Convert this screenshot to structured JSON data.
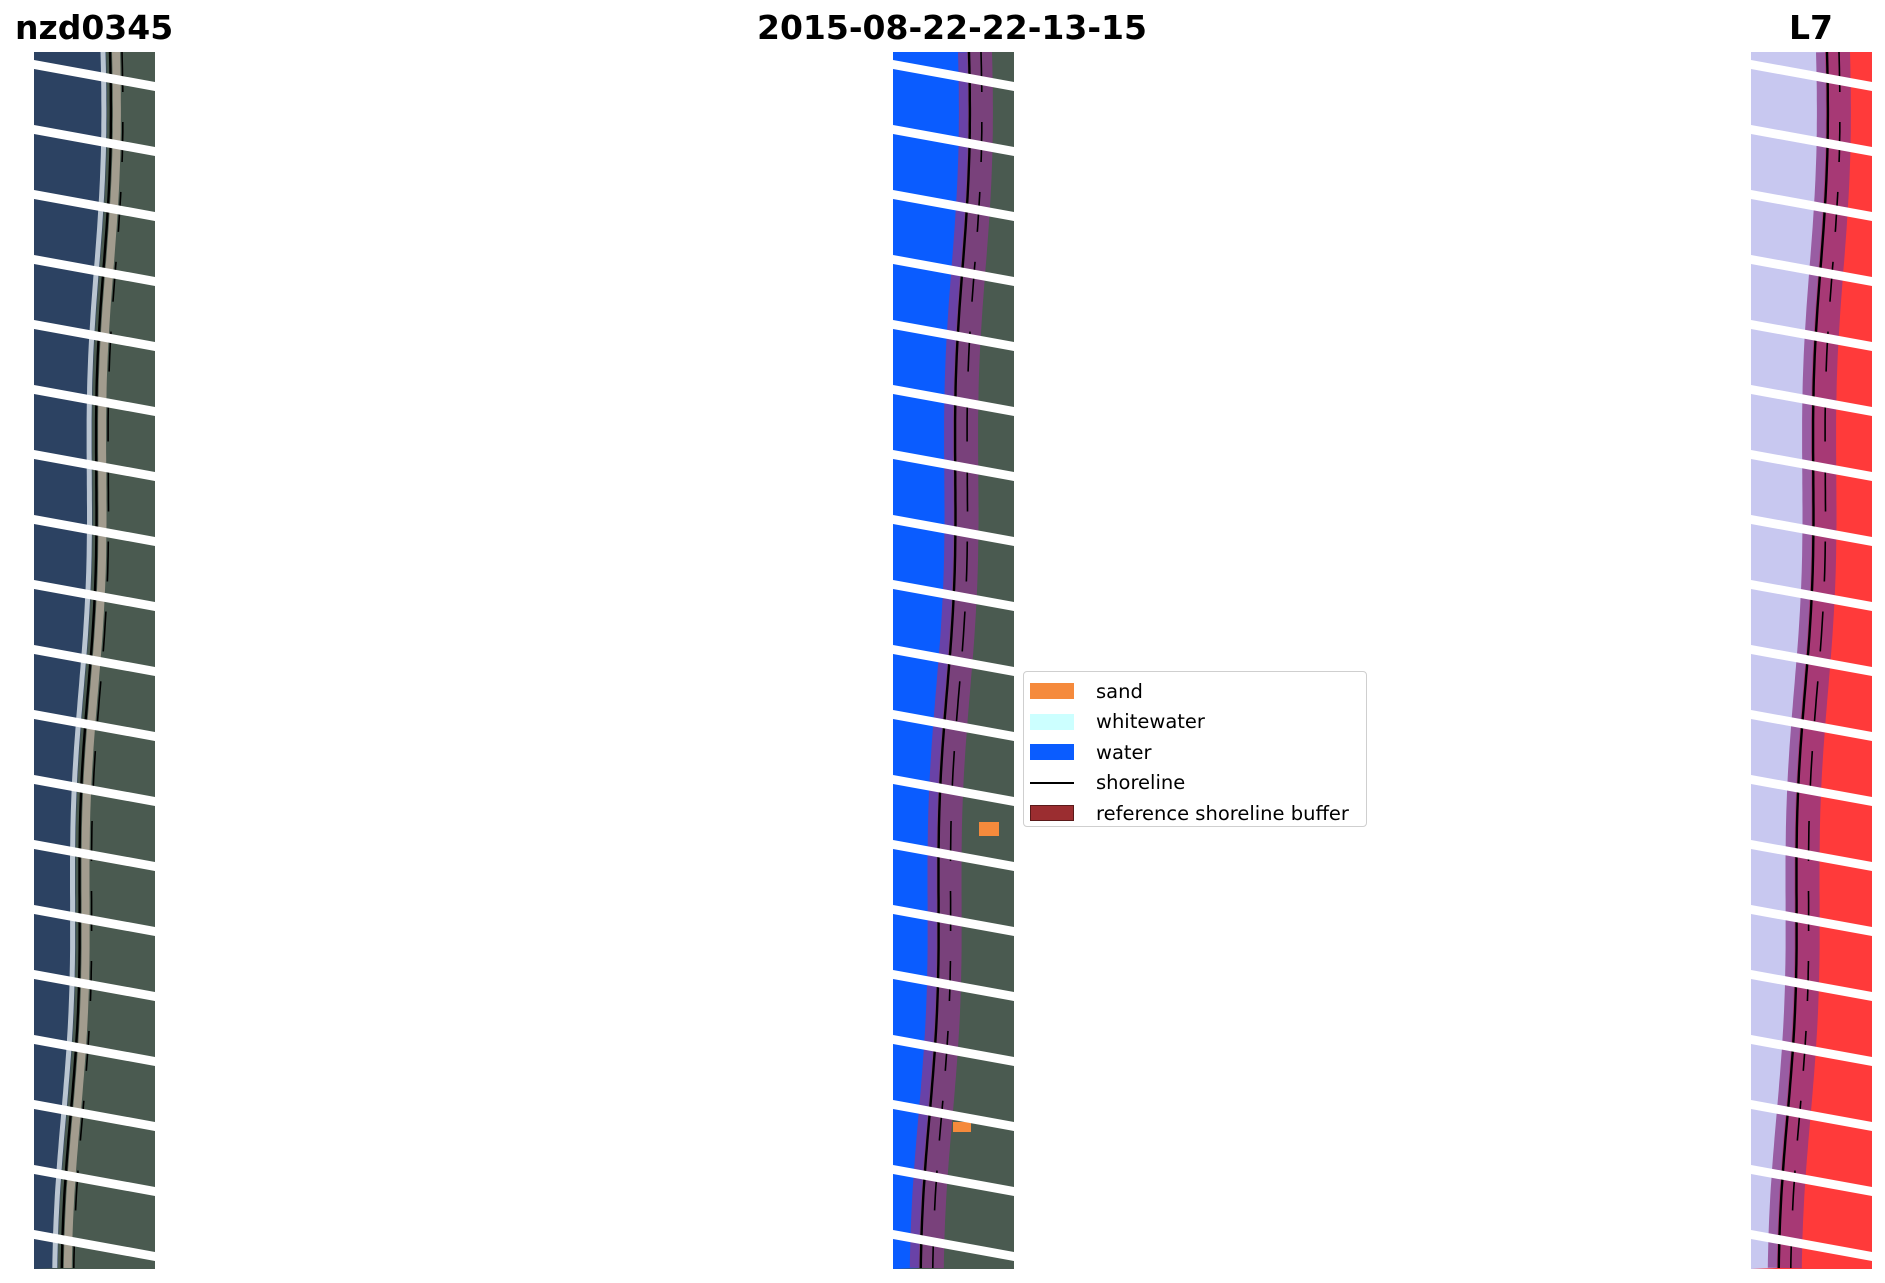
{
  "titles": {
    "site": "nzd0345",
    "date": "2015-08-22-22-13-15",
    "satellite": "L7"
  },
  "panels": {
    "left": {
      "content": "rgb-satellite-image-with-shoreline"
    },
    "middle": {
      "content": "classified-image-with-reference-buffer"
    },
    "right": {
      "content": "mndwi-index-image-with-reference-buffer"
    }
  },
  "legend": {
    "placement": "center-right-of-middle-panel",
    "items": [
      {
        "label": "sand",
        "color": "#f58a3c",
        "kind": "patch"
      },
      {
        "label": "whitewater",
        "color": "#ccffff",
        "kind": "patch"
      },
      {
        "label": "water",
        "color": "#0a5cff",
        "kind": "patch"
      },
      {
        "label": "shoreline",
        "color": "#000000",
        "kind": "line"
      },
      {
        "label": "reference shoreline buffer",
        "color": "#9b2d30",
        "kind": "patch"
      }
    ]
  },
  "colors": {
    "sea_rgb": "#2c4262",
    "land_rgb": "#4a5a50",
    "sand_rgb": "#c8b8a8",
    "water_class": "#0a5cff",
    "buffer_overlay": "#8a3a8a",
    "index_land": "#ff3a3a",
    "index_water": "#c8c8f0"
  }
}
